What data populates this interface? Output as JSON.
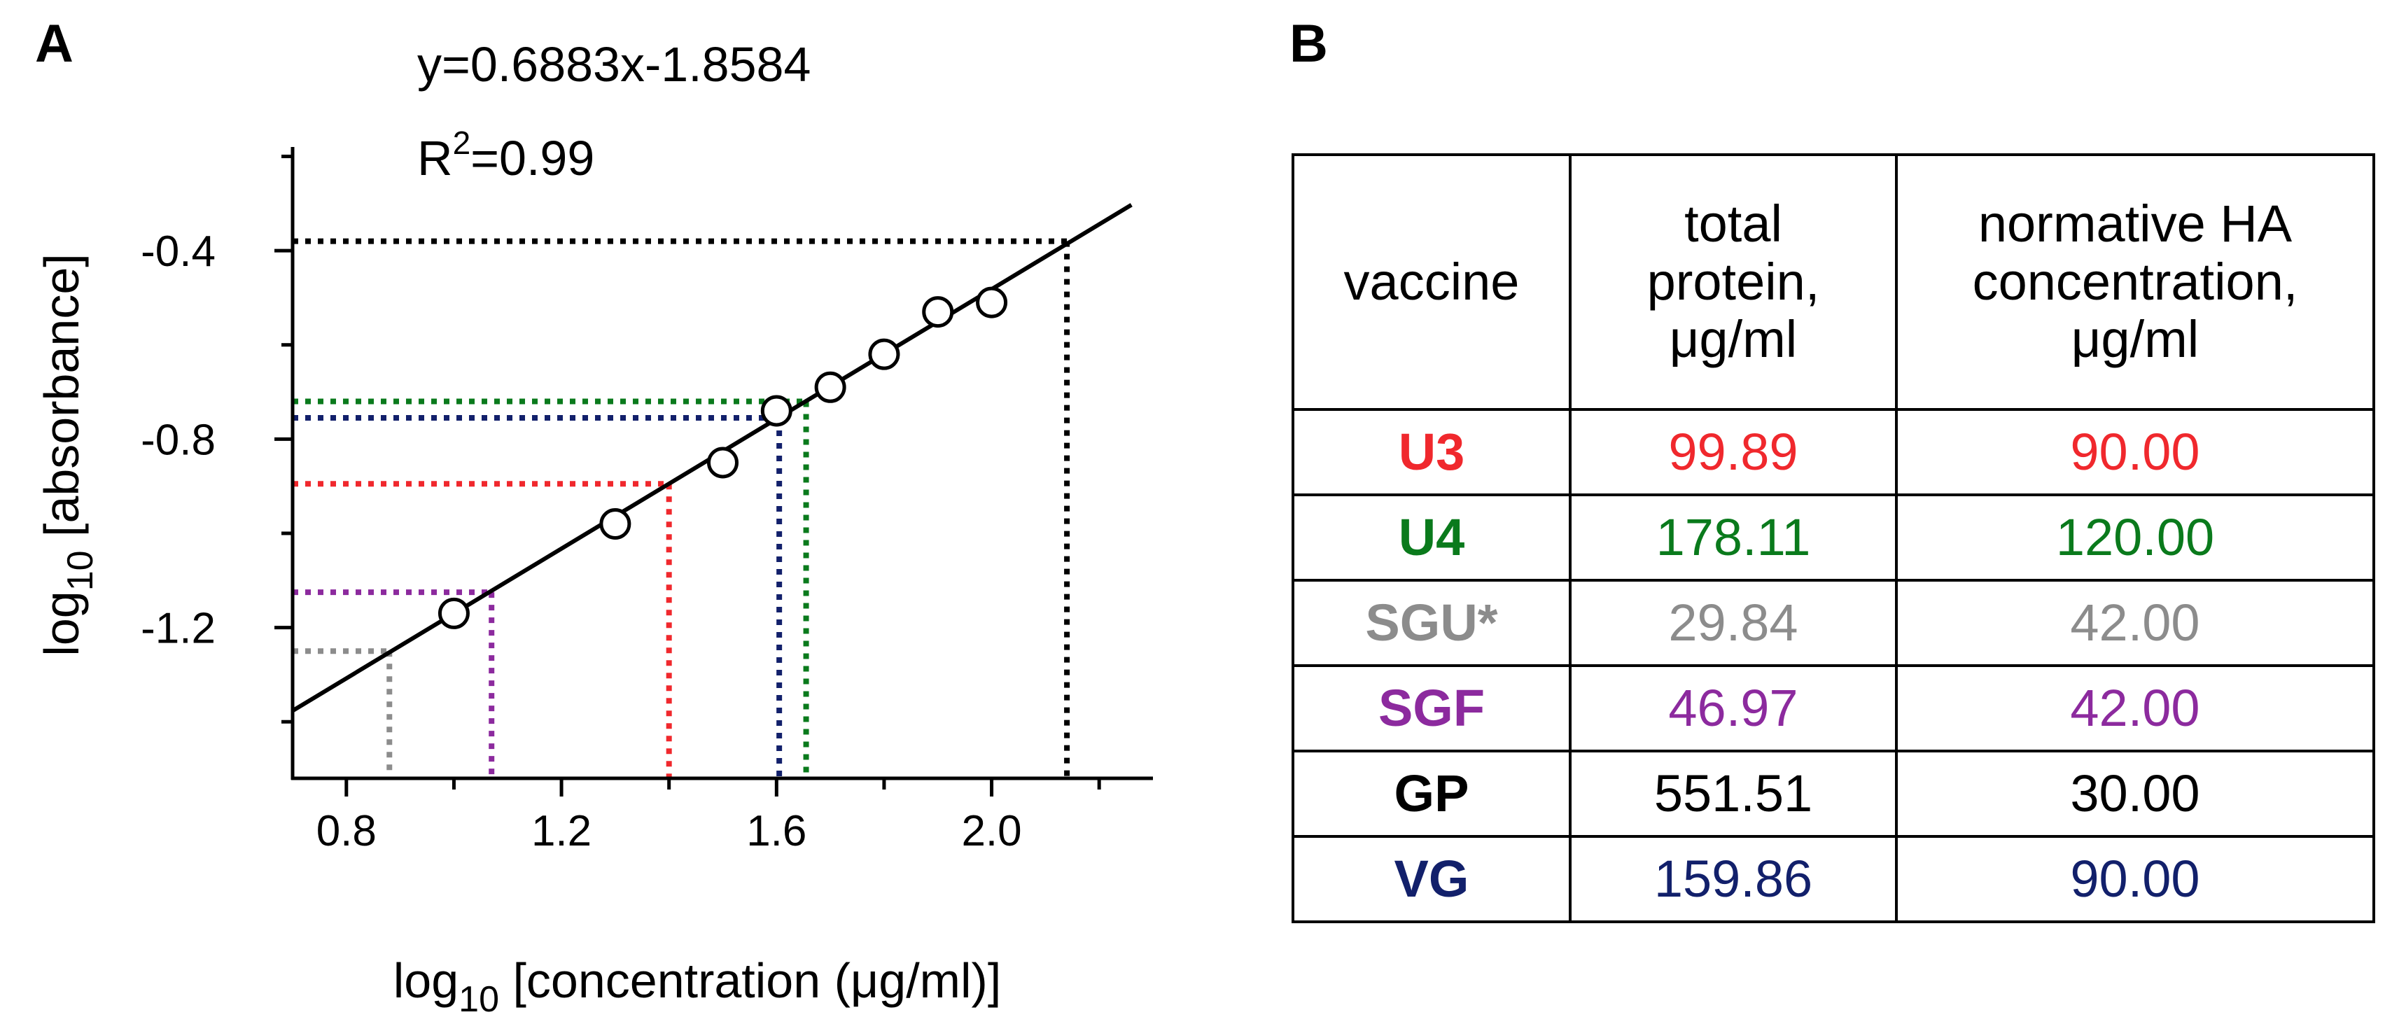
{
  "colors": {
    "red": "#f0282d",
    "green": "#0a7a1c",
    "gray": "#8c8c8c",
    "purple": "#8c2a9e",
    "black": "#000000",
    "navy": "#12206b"
  },
  "chart_data": {
    "type": "scatter",
    "panel_label": "A",
    "equation": "y=0.6883x-1.8584",
    "r2_prefix": "R",
    "r2_sup": "2",
    "r2_suffix": "=0.99",
    "regression": {
      "slope": 0.6883,
      "intercept": -1.8584
    },
    "xlabel_pre": "log",
    "xlabel_sub": "10",
    "xlabel_post": " [concentration (μg/ml)]",
    "ylabel_pre": "log",
    "ylabel_sub": "10",
    "ylabel_post": " [absorbance]",
    "xlim": [
      0.7,
      2.3
    ],
    "ylim": [
      -1.52,
      -0.18
    ],
    "xticks": [
      0.8,
      1.2,
      1.6,
      2.0
    ],
    "xtick_labels": [
      "0.8",
      "1.2",
      "1.6",
      "2.0"
    ],
    "yticks": [
      -0.4,
      -0.8,
      -1.2
    ],
    "ytick_labels": [
      "-0.4",
      "-0.8",
      "-1.2"
    ],
    "grid": false,
    "points": [
      {
        "x": 1.0,
        "y": -1.17
      },
      {
        "x": 1.3,
        "y": -0.98
      },
      {
        "x": 1.5,
        "y": -0.85
      },
      {
        "x": 1.6,
        "y": -0.74
      },
      {
        "x": 1.7,
        "y": -0.69
      },
      {
        "x": 1.8,
        "y": -0.62
      },
      {
        "x": 1.9,
        "y": -0.53
      },
      {
        "x": 2.0,
        "y": -0.51
      }
    ],
    "guides": [
      {
        "name": "GP",
        "color": "#000000",
        "x": 2.14,
        "y": -0.38
      },
      {
        "name": "U4",
        "color": "#0a7a1c",
        "x": 1.655,
        "y": -0.72
      },
      {
        "name": "VG",
        "color": "#12206b",
        "x": 1.605,
        "y": -0.755
      },
      {
        "name": "U3",
        "color": "#f0282d",
        "x": 1.4,
        "y": -0.895
      },
      {
        "name": "SGF",
        "color": "#8c2a9e",
        "x": 1.07,
        "y": -1.125
      },
      {
        "name": "SGU*",
        "color": "#8c8c8c",
        "x": 0.88,
        "y": -1.25
      }
    ]
  },
  "table": {
    "panel_label": "B",
    "headers": {
      "vaccine": [
        "vaccine"
      ],
      "protein": [
        "total",
        "protein,",
        "μg/ml"
      ],
      "ha": [
        "normative HA",
        "concentration,",
        "μg/ml"
      ]
    },
    "rows": [
      {
        "vaccine": "U3",
        "protein": "99.89",
        "ha": "90.00",
        "color": "#f0282d"
      },
      {
        "vaccine": "U4",
        "protein": "178.11",
        "ha": "120.00",
        "color": "#0a7a1c"
      },
      {
        "vaccine": "SGU*",
        "protein": "29.84",
        "ha": "42.00",
        "color": "#8c8c8c"
      },
      {
        "vaccine": "SGF",
        "protein": "46.97",
        "ha": "42.00",
        "color": "#8c2a9e"
      },
      {
        "vaccine": "GP",
        "protein": "551.51",
        "ha": "30.00",
        "color": "#000000"
      },
      {
        "vaccine": "VG",
        "protein": "159.86",
        "ha": "90.00",
        "color": "#12206b"
      }
    ]
  }
}
